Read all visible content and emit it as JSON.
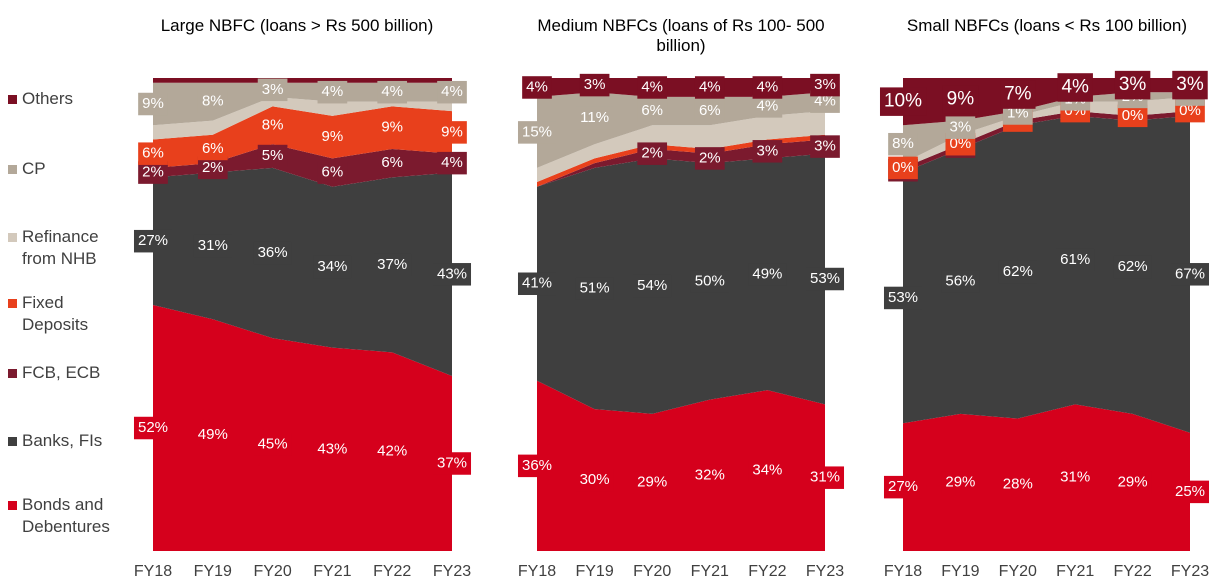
{
  "chart_data": [
    {
      "type": "area",
      "title": "Large NBFC (loans > Rs 500 billion)",
      "categories": [
        "FY18",
        "FY19",
        "FY20",
        "FY21",
        "FY22",
        "FY23"
      ],
      "ylim": [
        0,
        100
      ],
      "series": [
        {
          "name": "Bonds and Debentures",
          "color": "#d5001c",
          "values": [
            52,
            49,
            45,
            43,
            42,
            37
          ],
          "value_labels": [
            "52%",
            "49%",
            "45%",
            "43%",
            "42%",
            "37%"
          ]
        },
        {
          "name": "Banks, FIs",
          "color": "#3f3f3f",
          "values": [
            27,
            31,
            36,
            34,
            37,
            43
          ],
          "value_labels": [
            "27%",
            "31%",
            "36%",
            "34%",
            "37%",
            "43%"
          ]
        },
        {
          "name": "FCB, ECB",
          "color": "#7b1a2e",
          "values": [
            2,
            2,
            5,
            6,
            6,
            4
          ],
          "value_labels": [
            "2%",
            "2%",
            "5%",
            "6%",
            "6%",
            "4%"
          ]
        },
        {
          "name": "Fixed Deposits",
          "color": "#e8401c",
          "values": [
            6,
            6,
            8,
            9,
            9,
            9
          ],
          "value_labels": [
            "6%",
            "6%",
            "8%",
            "9%",
            "9%",
            "9%"
          ]
        },
        {
          "name": "Refinance from NHB",
          "color": "#d3c9bc",
          "values": [
            3,
            3,
            2,
            3,
            1,
            2
          ],
          "value_labels": [
            null,
            null,
            null,
            null,
            null,
            null
          ]
        },
        {
          "name": "CP",
          "color": "#b3a899",
          "values": [
            9,
            8,
            3,
            4,
            4,
            4
          ],
          "value_labels": [
            "9%",
            "8%",
            "3%",
            "4%",
            "4%",
            "4%"
          ]
        },
        {
          "name": "Others",
          "color": "#7b0f23",
          "values": [
            1,
            1,
            1,
            1,
            1,
            1
          ],
          "value_labels": [
            null,
            null,
            null,
            null,
            null,
            null
          ]
        }
      ]
    },
    {
      "type": "area",
      "title": "Medium NBFCs (loans of Rs 100- 500 billion)",
      "categories": [
        "FY18",
        "FY19",
        "FY20",
        "FY21",
        "FY22",
        "FY23"
      ],
      "ylim": [
        0,
        100
      ],
      "series": [
        {
          "name": "Bonds and Debentures",
          "color": "#d5001c",
          "values": [
            36,
            30,
            29,
            32,
            34,
            31
          ],
          "value_labels": [
            "36%",
            "30%",
            "29%",
            "32%",
            "34%",
            "31%"
          ]
        },
        {
          "name": "Banks, FIs",
          "color": "#3f3f3f",
          "values": [
            41,
            51,
            54,
            50,
            49,
            53
          ],
          "value_labels": [
            "41%",
            "51%",
            "54%",
            "50%",
            "49%",
            "53%"
          ]
        },
        {
          "name": "FCB, ECB",
          "color": "#7b1a2e",
          "values": [
            0,
            1,
            2,
            2,
            3,
            3
          ],
          "value_labels": [
            null,
            null,
            "2%",
            "2%",
            "3%",
            "3%"
          ]
        },
        {
          "name": "Fixed Deposits",
          "color": "#e8401c",
          "values": [
            1,
            1,
            1,
            1,
            1,
            1
          ],
          "value_labels": [
            null,
            null,
            null,
            null,
            null,
            null
          ]
        },
        {
          "name": "Refinance from NHB",
          "color": "#d3c9bc",
          "values": [
            3,
            3,
            4,
            5,
            5,
            5
          ],
          "value_labels": [
            null,
            null,
            null,
            null,
            null,
            null
          ]
        },
        {
          "name": "CP",
          "color": "#b3a899",
          "values": [
            15,
            11,
            6,
            6,
            4,
            4
          ],
          "value_labels": [
            "15%",
            "11%",
            "6%",
            "6%",
            "4%",
            "4%"
          ]
        },
        {
          "name": "Others",
          "color": "#7b0f23",
          "values": [
            4,
            3,
            4,
            4,
            4,
            3
          ],
          "value_labels": [
            "4%",
            "3%",
            "4%",
            "4%",
            "4%",
            "3%"
          ]
        }
      ]
    },
    {
      "type": "area",
      "title": "Small NBFCs (loans < Rs 100 billion)",
      "categories": [
        "FY18",
        "FY19",
        "FY20",
        "FY21",
        "FY22",
        "FY23"
      ],
      "ylim": [
        0,
        100
      ],
      "series": [
        {
          "name": "Bonds and Debentures",
          "color": "#d5001c",
          "values": [
            27,
            29,
            28,
            31,
            29,
            25
          ],
          "value_labels": [
            "27%",
            "29%",
            "28%",
            "31%",
            "29%",
            "25%"
          ]
        },
        {
          "name": "Banks, FIs",
          "color": "#3f3f3f",
          "values": [
            53,
            56,
            62,
            61,
            62,
            67
          ],
          "value_labels": [
            "53%",
            "56%",
            "62%",
            "61%",
            "62%",
            "67%"
          ]
        },
        {
          "name": "FCB, ECB",
          "color": "#7b1a2e",
          "values": [
            1,
            1,
            1,
            1,
            1,
            1
          ],
          "value_labels": [
            "1%",
            "1%",
            null,
            null,
            null,
            null
          ]
        },
        {
          "name": "Fixed Deposits",
          "color": "#e8401c",
          "values": [
            0,
            0,
            0,
            0,
            0,
            0
          ],
          "value_labels": [
            "0%",
            "0%",
            "0%",
            "0%",
            "0%",
            "0%"
          ]
        },
        {
          "name": "Refinance from NHB",
          "color": "#d3c9bc",
          "values": [
            1,
            2,
            1,
            2,
            3,
            3
          ],
          "value_labels": [
            null,
            null,
            null,
            null,
            null,
            null
          ]
        },
        {
          "name": "CP",
          "color": "#b3a899",
          "values": [
            8,
            3,
            1,
            1,
            2,
            1
          ],
          "value_labels": [
            "8%",
            "3%",
            "1%",
            "1%",
            "2%",
            "1%"
          ]
        },
        {
          "name": "Others",
          "color": "#7b0f23",
          "values": [
            10,
            9,
            7,
            4,
            3,
            3
          ],
          "value_labels": [
            "10%",
            "9%",
            "7%",
            "4%",
            "3%",
            "3%"
          ]
        }
      ]
    }
  ]
}
